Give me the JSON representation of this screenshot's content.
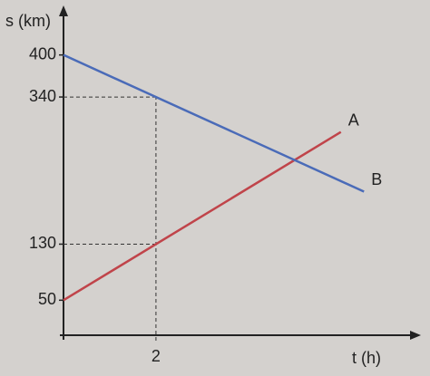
{
  "chart_data": {
    "type": "line",
    "y_label": "s (km)",
    "x_label": "t (h)",
    "xlim": [
      0,
      7.3
    ],
    "ylim": [
      0,
      450
    ],
    "xticks": [
      2
    ],
    "yticks": [
      50,
      130,
      340,
      400
    ],
    "series": [
      {
        "name": "A",
        "color": "#c0444a",
        "x": [
          0,
          6
        ],
        "values": [
          50,
          290
        ]
      },
      {
        "name": "B",
        "color": "#4a6bb8",
        "x": [
          0,
          6.5
        ],
        "values": [
          400,
          205
        ]
      }
    ]
  }
}
